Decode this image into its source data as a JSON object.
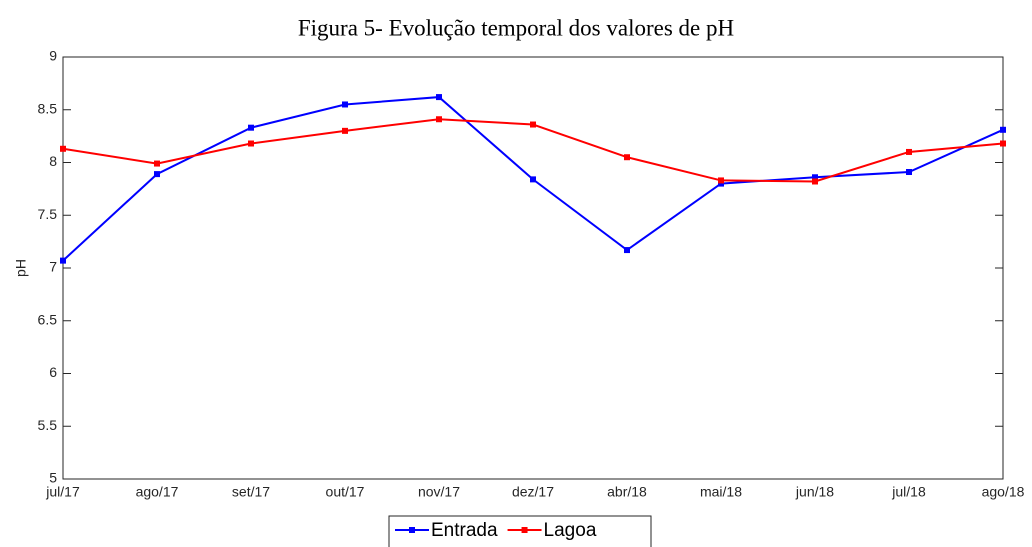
{
  "chart_data": {
    "type": "line",
    "title": "Figura 5- Evolução temporal dos valores de pH",
    "y_label": "pH",
    "categories": [
      "jul/17",
      "ago/17",
      "set/17",
      "out/17",
      "nov/17",
      "dez/17",
      "abr/18",
      "mai/18",
      "jun/18",
      "jul/18",
      "ago/18"
    ],
    "series": [
      {
        "name": "Entrada",
        "color": "#0000ff",
        "values": [
          7.07,
          7.89,
          8.33,
          8.55,
          8.62,
          7.84,
          7.17,
          7.8,
          7.86,
          7.91,
          8.31
        ]
      },
      {
        "name": "Lagoa",
        "color": "#ff0000",
        "values": [
          8.13,
          7.99,
          8.18,
          8.3,
          8.41,
          8.36,
          8.05,
          7.83,
          7.82,
          8.1,
          8.18
        ]
      }
    ],
    "ylim": [
      5,
      9
    ],
    "yticks": [
      5,
      5.5,
      6,
      6.5,
      7,
      7.5,
      8,
      8.5,
      9
    ],
    "grid": false,
    "legend": "bottom-center"
  }
}
